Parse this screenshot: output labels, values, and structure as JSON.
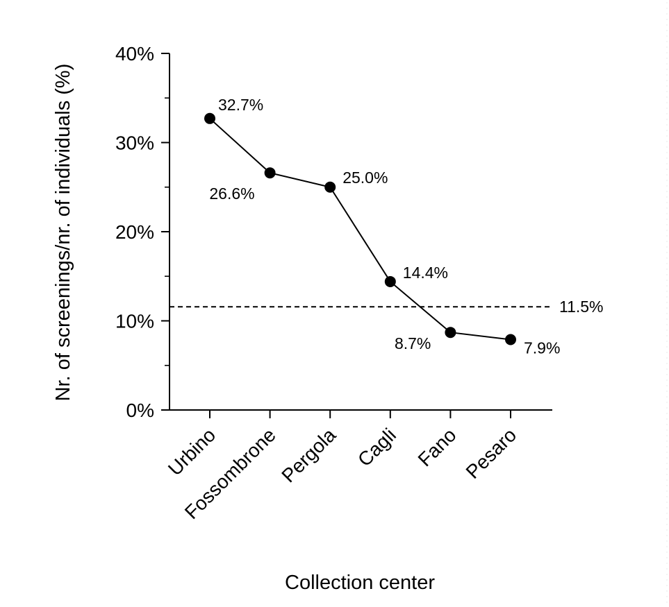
{
  "chart_data": {
    "type": "line",
    "title": "",
    "xlabel": "Collection center",
    "ylabel": "Nr. of screenings/nr. of individuals (%)",
    "categories": [
      "Urbino",
      "Fossombrone",
      "Pergola",
      "Cagli",
      "Fano",
      "Pesaro"
    ],
    "series": [
      {
        "values": [
          32.7,
          26.6,
          25.0,
          14.4,
          8.7,
          7.9
        ]
      }
    ],
    "data_labels": [
      "32.7%",
      "26.6%",
      "25.0%",
      "14.4%",
      "8.7%",
      "7.9%"
    ],
    "reference_line": {
      "value": 11.5,
      "label": "11.5%",
      "style": "dashed"
    },
    "ylim": [
      0,
      40
    ],
    "yticks": [
      0,
      10,
      20,
      30,
      40
    ],
    "ytick_labels": [
      "0%",
      "10%",
      "20%",
      "30%",
      "40%"
    ],
    "grid": false,
    "colors": {
      "line": "#000000",
      "marker": "#000000",
      "reference": "#000000"
    }
  }
}
